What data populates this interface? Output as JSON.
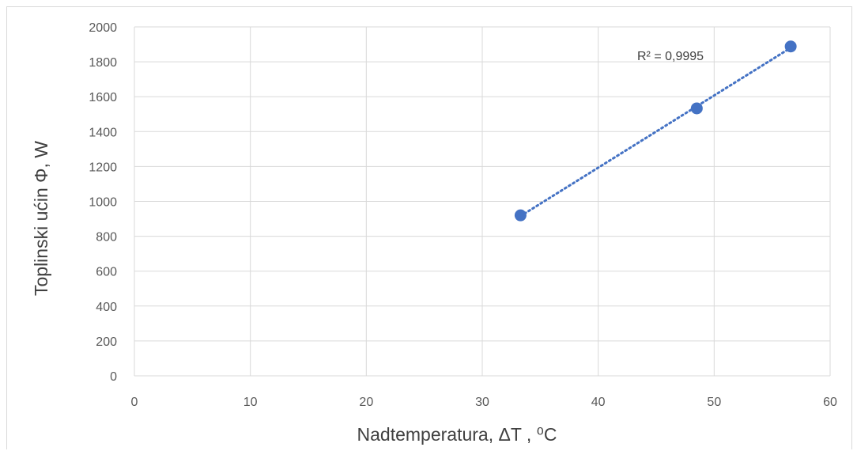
{
  "chart_data": {
    "type": "scatter",
    "title": "",
    "xlabel": "Nadtemperatura, ΔT , ⁰C",
    "ylabel": "Toplinski ućin Φ, W",
    "xlim": [
      0,
      60
    ],
    "ylim": [
      0,
      2000
    ],
    "x_ticks": [
      0,
      10,
      20,
      30,
      40,
      50,
      60
    ],
    "y_ticks": [
      0,
      200,
      400,
      600,
      800,
      1000,
      1200,
      1400,
      1600,
      1800,
      2000
    ],
    "grid": true,
    "series": [
      {
        "x": [
          33.3,
          48.5,
          56.6
        ],
        "y": [
          920,
          1533,
          1888
        ],
        "color": "#4472C4",
        "marker": "circle"
      }
    ],
    "trendline": {
      "type": "linear",
      "style": "dotted",
      "color": "#4472C4",
      "x_range": [
        33.3,
        56.6
      ],
      "label": "R² = 0,9995"
    }
  }
}
